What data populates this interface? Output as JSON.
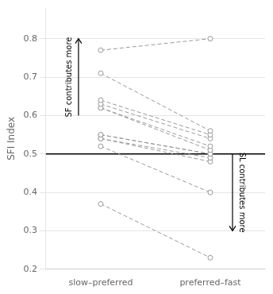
{
  "chart_data": {
    "type": "line",
    "categories": [
      "slow–preferred",
      "preferred–fast"
    ],
    "series": [
      {
        "values": [
          0.77,
          0.8
        ]
      },
      {
        "values": [
          0.71,
          0.56
        ]
      },
      {
        "values": [
          0.64,
          0.55
        ]
      },
      {
        "values": [
          0.63,
          0.54
        ]
      },
      {
        "values": [
          0.62,
          0.52
        ]
      },
      {
        "values": [
          0.62,
          0.51
        ]
      },
      {
        "values": [
          0.55,
          0.5
        ]
      },
      {
        "values": [
          0.55,
          0.5
        ]
      },
      {
        "values": [
          0.54,
          0.49
        ]
      },
      {
        "values": [
          0.54,
          0.48
        ]
      },
      {
        "values": [
          0.52,
          0.4
        ]
      },
      {
        "values": [
          0.37,
          0.23
        ]
      }
    ],
    "color": "#999999",
    "line_style": "dashed",
    "marker": "circle",
    "ylabel": "SFI Index",
    "ylim": [
      0.2,
      0.88
    ],
    "yticks": [
      0.2,
      0.3,
      0.4,
      0.5,
      0.6,
      0.7,
      0.8
    ],
    "grid": true,
    "hline": 0.5,
    "annotations": [
      {
        "text": "SF contributes more",
        "from": 0.6,
        "to": 0.8
      },
      {
        "text": "SL contributes more",
        "from": 0.5,
        "to": 0.3
      }
    ]
  }
}
